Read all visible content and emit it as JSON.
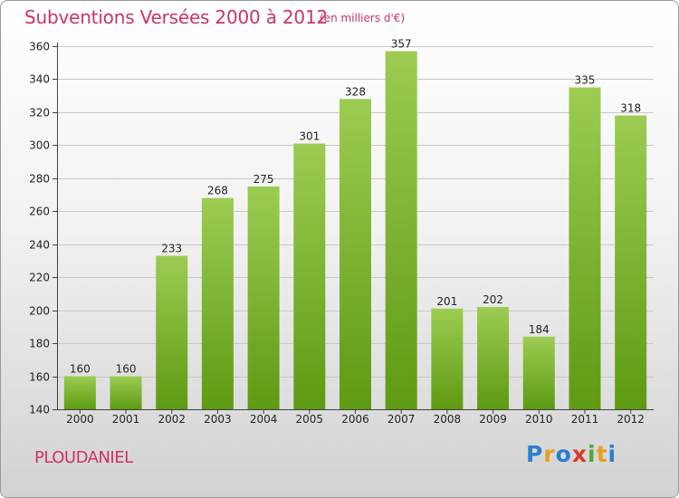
{
  "title": "Subventions Versées 2000 à 2012",
  "subtitle": "(en milliers d'€)",
  "place": "PLOUDANIEL",
  "logo": "Proxiti",
  "colors": {
    "title": "#cc3366",
    "bar_top": "#9ccc52",
    "bar_bottom": "#5e9a12",
    "grid": "#c8c8c8",
    "axis": "#404040"
  },
  "chart_data": {
    "type": "bar",
    "title": "Subventions Versées 2000 à 2012",
    "subtitle": "(en milliers d'€)",
    "xlabel": "",
    "ylabel": "",
    "categories": [
      "2000",
      "2001",
      "2002",
      "2003",
      "2004",
      "2005",
      "2006",
      "2007",
      "2008",
      "2009",
      "2010",
      "2011",
      "2012"
    ],
    "values": [
      160,
      160,
      233,
      268,
      275,
      301,
      328,
      357,
      201,
      202,
      184,
      335,
      318
    ],
    "value_labels": [
      "160",
      "160",
      "233",
      "268",
      "275",
      "301",
      "328",
      "357",
      "201",
      "202",
      "184",
      "335",
      "318"
    ],
    "ylim": [
      140,
      360
    ],
    "yticks": [
      140,
      160,
      180,
      200,
      220,
      240,
      260,
      280,
      300,
      320,
      340,
      360
    ],
    "ytick_labels": [
      "140",
      "160",
      "180",
      "200",
      "220",
      "240",
      "260",
      "280",
      "300",
      "320",
      "340",
      "360"
    ],
    "grid": true,
    "legend": "none"
  }
}
